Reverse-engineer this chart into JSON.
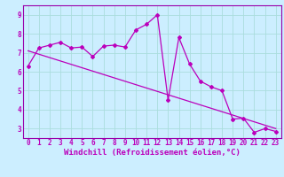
{
  "xlabel": "Windchill (Refroidissement éolien,°C)",
  "bg_color": "#cceeff",
  "line_color": "#bb00bb",
  "spine_color": "#9900aa",
  "xlim": [
    -0.5,
    23.5
  ],
  "ylim": [
    2.5,
    9.5
  ],
  "yticks": [
    3,
    4,
    5,
    6,
    7,
    8,
    9
  ],
  "xticks": [
    0,
    1,
    2,
    3,
    4,
    5,
    6,
    7,
    8,
    9,
    10,
    11,
    12,
    13,
    14,
    15,
    16,
    17,
    18,
    19,
    20,
    21,
    22,
    23
  ],
  "series1_x": [
    0,
    1,
    2,
    3,
    4,
    5,
    6,
    7,
    8,
    9,
    10,
    11,
    12,
    13,
    14,
    15,
    16,
    17,
    18,
    19,
    20,
    21,
    22,
    23
  ],
  "series1_y": [
    6.3,
    7.25,
    7.4,
    7.55,
    7.25,
    7.3,
    6.8,
    7.35,
    7.4,
    7.3,
    8.2,
    8.5,
    9.0,
    4.5,
    7.8,
    6.4,
    5.5,
    5.2,
    5.0,
    3.5,
    3.55,
    2.8,
    3.0,
    2.85
  ],
  "series2_x": [
    0,
    23
  ],
  "series2_y": [
    7.1,
    3.0
  ],
  "grid_color": "#aadddd",
  "tick_label_size": 5.5,
  "xlabel_size": 6.5,
  "marker": "D",
  "marker_size": 2.0,
  "linewidth": 0.9
}
